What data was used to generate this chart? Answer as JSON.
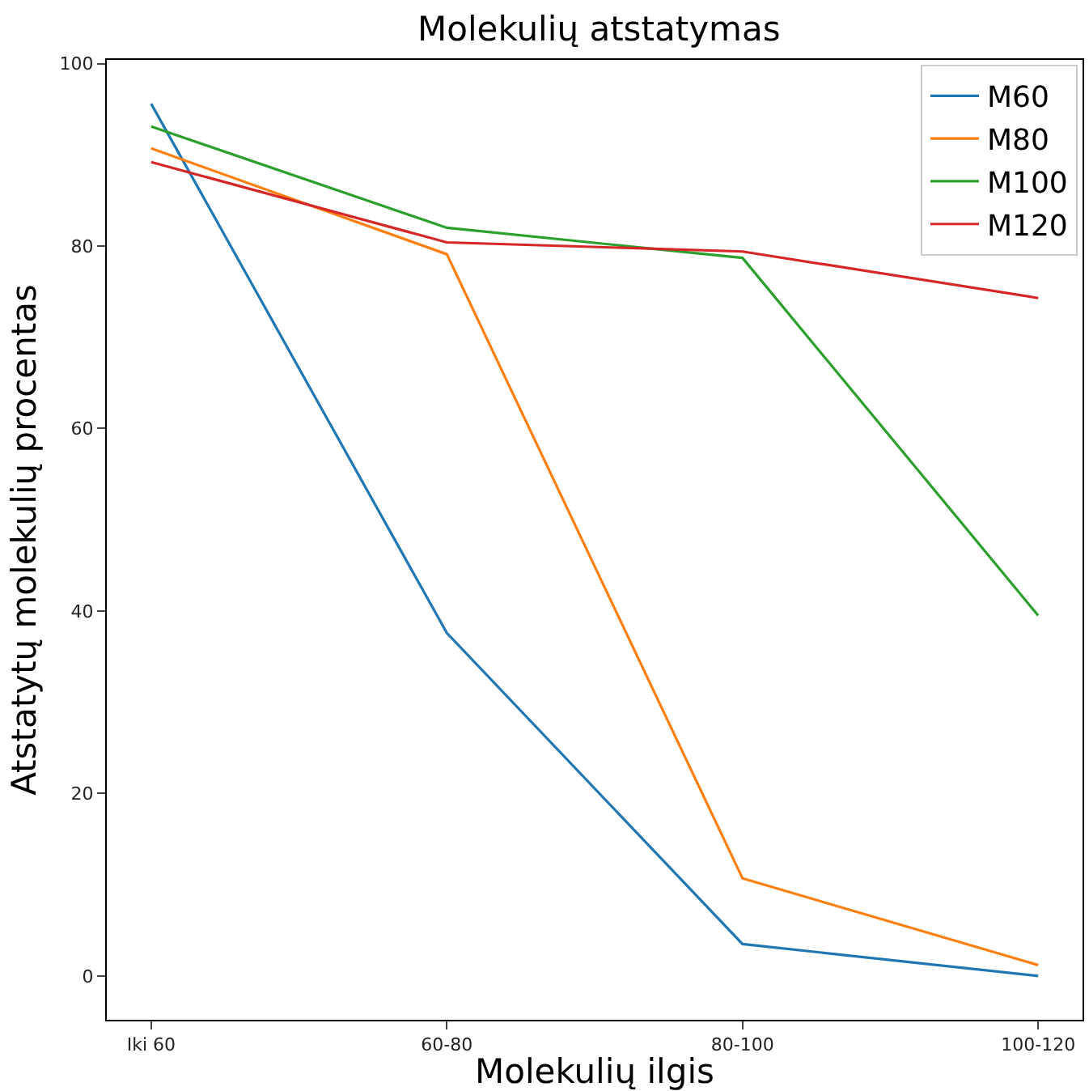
{
  "chart_data": {
    "type": "line",
    "title": "Molekulių atstatymas",
    "xlabel": "Molekulių ilgis",
    "ylabel": "Atstatytų molekulių procentas",
    "categories": [
      "Iki 60",
      "60-80",
      "80-100",
      "100-120"
    ],
    "series": [
      {
        "name": "M60",
        "color": "#1f77b4",
        "values": [
          95.6,
          37.6,
          3.5,
          0
        ]
      },
      {
        "name": "M80",
        "color": "#ff7f0e",
        "values": [
          90.7,
          79.1,
          10.7,
          1.2
        ]
      },
      {
        "name": "M100",
        "color": "#2ca02c",
        "values": [
          93.1,
          82.0,
          78.7,
          39.5
        ]
      },
      {
        "name": "M120",
        "color": "#d62728",
        "values": [
          89.2,
          80.4,
          79.4,
          74.3
        ]
      }
    ],
    "ylim": [
      -4.8,
      100.4
    ],
    "yticks": [
      0,
      20,
      40,
      60,
      80,
      100
    ],
    "legend": "top right",
    "marker": "none",
    "line_style": "solid"
  }
}
